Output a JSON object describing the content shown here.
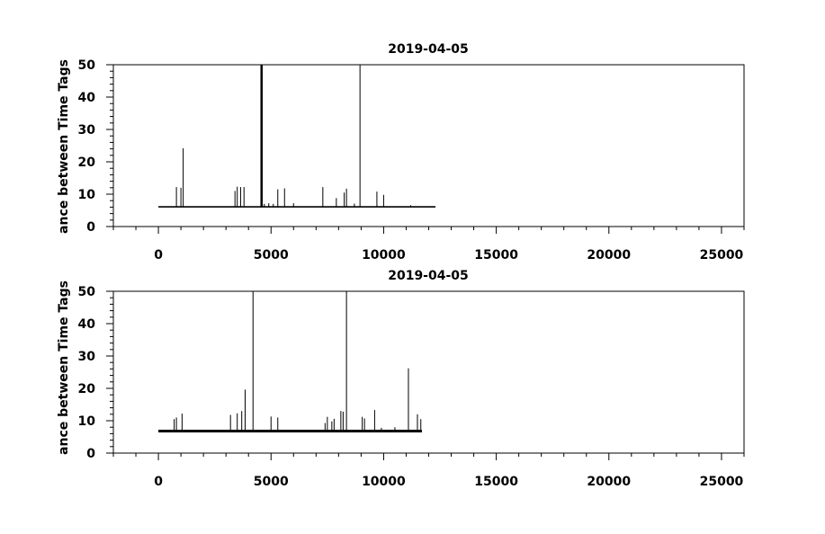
{
  "chart_data": [
    {
      "type": "line",
      "title": "2019-04-05",
      "ylabel": "ance between Time Tags",
      "xlabel": "",
      "xlim": [
        -2000,
        26000
      ],
      "ylim": [
        0,
        50
      ],
      "xticks": [
        0,
        5000,
        10000,
        15000,
        20000,
        25000
      ],
      "xtick_labels": [
        "0",
        "5000",
        "10000",
        "15000",
        "20000",
        "25000"
      ],
      "yticks": [
        0,
        10,
        20,
        30,
        40,
        50
      ],
      "ytick_labels": [
        "0",
        "10",
        "20",
        "30",
        "40",
        "50"
      ],
      "grid": false,
      "series": [
        {
          "x_range": [
            0,
            12300
          ],
          "baseline": 6.1,
          "color": "#000000",
          "spikes": [
            {
              "x": 800,
              "y": 12.2
            },
            {
              "x": 1000,
              "y": 12.0
            },
            {
              "x": 1100,
              "y": 24.2
            },
            {
              "x": 3400,
              "y": 11.0
            },
            {
              "x": 3500,
              "y": 12.3
            },
            {
              "x": 3650,
              "y": 12.2
            },
            {
              "x": 3800,
              "y": 12.2
            },
            {
              "x": 4560,
              "y": 50
            },
            {
              "x": 4600,
              "y": 50
            },
            {
              "x": 4700,
              "y": 7.0
            },
            {
              "x": 4900,
              "y": 7.2
            },
            {
              "x": 5100,
              "y": 7.0
            },
            {
              "x": 5300,
              "y": 11.5
            },
            {
              "x": 5600,
              "y": 11.8
            },
            {
              "x": 6000,
              "y": 7.2
            },
            {
              "x": 7300,
              "y": 12.2
            },
            {
              "x": 7900,
              "y": 8.8
            },
            {
              "x": 8250,
              "y": 10.5
            },
            {
              "x": 8350,
              "y": 11.7
            },
            {
              "x": 8700,
              "y": 7.1
            },
            {
              "x": 8950,
              "y": 50
            },
            {
              "x": 9700,
              "y": 10.8
            },
            {
              "x": 10000,
              "y": 9.8
            },
            {
              "x": 11200,
              "y": 6.6
            }
          ]
        }
      ]
    },
    {
      "type": "line",
      "title": "2019-04-05",
      "ylabel": "ance between Time Tags",
      "xlabel": "",
      "xlim": [
        -2000,
        26000
      ],
      "ylim": [
        0,
        50
      ],
      "xticks": [
        0,
        5000,
        10000,
        15000,
        20000,
        25000
      ],
      "xtick_labels": [
        "0",
        "5000",
        "10000",
        "15000",
        "20000",
        "25000"
      ],
      "yticks": [
        0,
        10,
        20,
        30,
        40,
        50
      ],
      "ytick_labels": [
        "0",
        "10",
        "20",
        "30",
        "40",
        "50"
      ],
      "grid": false,
      "series": [
        {
          "x_range": [
            0,
            11700
          ],
          "baseline": 6.8,
          "color": "#000000",
          "spikes": [
            {
              "x": 700,
              "y": 10.5
            },
            {
              "x": 800,
              "y": 11.0
            },
            {
              "x": 1050,
              "y": 12.2
            },
            {
              "x": 3200,
              "y": 11.8
            },
            {
              "x": 3500,
              "y": 12.3
            },
            {
              "x": 3700,
              "y": 13.0
            },
            {
              "x": 3850,
              "y": 19.6
            },
            {
              "x": 4200,
              "y": 50
            },
            {
              "x": 5000,
              "y": 11.3
            },
            {
              "x": 5300,
              "y": 11.0
            },
            {
              "x": 7400,
              "y": 9.3
            },
            {
              "x": 7500,
              "y": 11.2
            },
            {
              "x": 7700,
              "y": 9.8
            },
            {
              "x": 7800,
              "y": 10.6
            },
            {
              "x": 8100,
              "y": 13.0
            },
            {
              "x": 8200,
              "y": 12.8
            },
            {
              "x": 8350,
              "y": 50
            },
            {
              "x": 9050,
              "y": 11.2
            },
            {
              "x": 9150,
              "y": 10.7
            },
            {
              "x": 9600,
              "y": 13.3
            },
            {
              "x": 9900,
              "y": 7.8
            },
            {
              "x": 10500,
              "y": 8.0
            },
            {
              "x": 11100,
              "y": 26.2
            },
            {
              "x": 11500,
              "y": 12.0
            },
            {
              "x": 11650,
              "y": 10.5
            }
          ]
        }
      ]
    }
  ]
}
